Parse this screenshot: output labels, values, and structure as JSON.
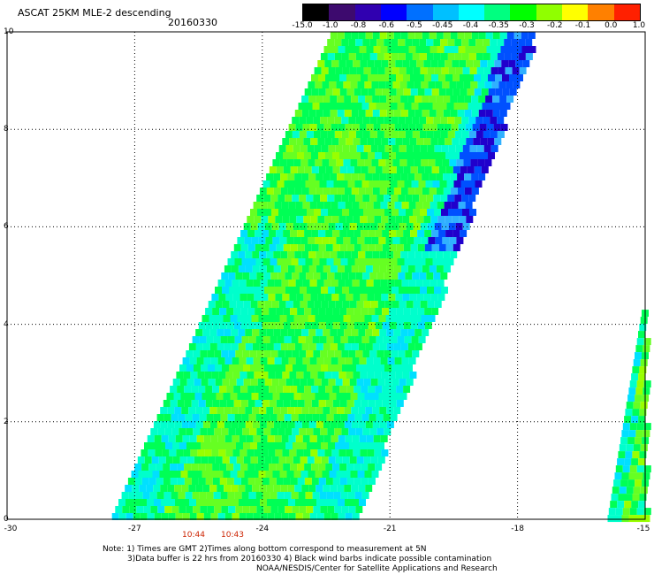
{
  "header": {
    "title": "ASCAT 25KM MLE-2 descending",
    "date": "20160330"
  },
  "colorbar": {
    "labels": [
      "-15.0",
      "-1.0",
      "-0.8",
      "-0.6",
      "-0.5",
      "-0.45",
      "-0.4",
      "-0.35",
      "-0.3",
      "-0.2",
      "-0.1",
      "0.0",
      "1.0"
    ],
    "colors": [
      "#000000",
      "#3d0a6e",
      "#3000b0",
      "#0000ff",
      "#0070ff",
      "#00c0ff",
      "#00ffff",
      "#00ff80",
      "#00ff00",
      "#90ff00",
      "#ffff00",
      "#ff8000",
      "#ff2000"
    ]
  },
  "axes": {
    "y_ticks": [
      "10",
      "8",
      "6",
      "4",
      "2",
      "0"
    ],
    "x_ticks": [
      "-30",
      "-27",
      "-24",
      "-21",
      "-18",
      "-15"
    ]
  },
  "times": [
    "10:44",
    "10:43"
  ],
  "notes": {
    "line1": "Note: 1) Times are GMT 2)Times along bottom correspond to measurement at 5N",
    "line2": "3)Data buffer is 22 hrs from 20160330 4) Black wind barbs indicate possible contamination",
    "line3": "NOAA/NESDIS/Center for Satellite Applications and Research"
  },
  "map_data": {
    "lat_range": [
      0,
      10
    ],
    "lon_range": [
      -30,
      -15
    ],
    "swath_colors": [
      "#00ff55",
      "#66ff22",
      "#99ff00",
      "#00ffcc",
      "#00e0ff",
      "#30b0ff",
      "#0050ff",
      "#2000cc",
      "#3a0a66"
    ]
  }
}
